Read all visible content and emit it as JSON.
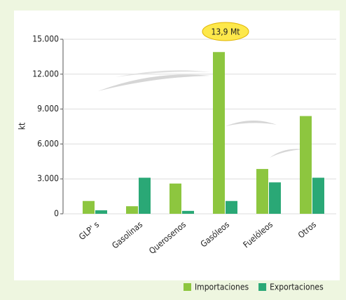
{
  "chart_data": {
    "type": "bar",
    "y_label": "kt",
    "annotation": "13,9 Mt",
    "categories": [
      "GLP' s",
      "Gasolinas",
      "Querosenos",
      "Gasóleos",
      "Fuelóleos",
      "Otros"
    ],
    "series": [
      {
        "name": "Importaciones",
        "color": "#8dc63f",
        "values": [
          1100,
          650,
          2600,
          13900,
          3850,
          8400
        ]
      },
      {
        "name": "Exportaciones",
        "color": "#2aa876",
        "values": [
          300,
          3100,
          250,
          1100,
          2700,
          3100
        ]
      }
    ],
    "ylim": [
      0,
      15000
    ],
    "yticks": [
      0,
      {
        "value": 3000,
        "label": "3.000"
      },
      {
        "value": 6000,
        "label": "6.000"
      },
      {
        "value": 9000,
        "label": "9.000"
      },
      {
        "value": 12000,
        "label": "12.000"
      },
      {
        "value": 15000,
        "label": "15.000"
      }
    ],
    "grid": true
  }
}
